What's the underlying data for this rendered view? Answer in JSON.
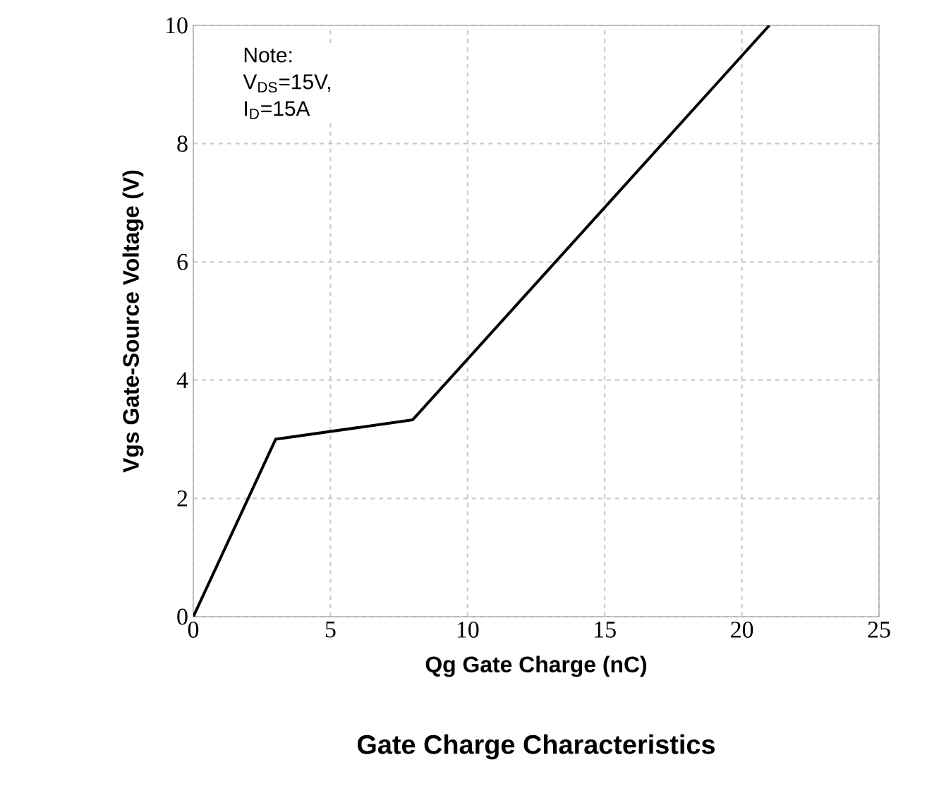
{
  "chart_data": {
    "type": "line",
    "title": "Gate Charge Characteristics",
    "xlabel": "Qg Gate Charge (nC)",
    "ylabel": "Vgs Gate-Source Voltage (V)",
    "annotations": [
      "Note:",
      "V$_{DS}$=15V,",
      "I$_{D}$=15A"
    ],
    "x": [
      0,
      3,
      8,
      21
    ],
    "values": [
      0,
      3,
      3.33,
      10
    ],
    "color": "#000000",
    "xlim": [
      0,
      25
    ],
    "ylim": [
      0,
      10
    ],
    "xticks": [
      0,
      5,
      10,
      15,
      20,
      25
    ],
    "yticks": [
      0,
      2,
      4,
      6,
      8,
      10
    ],
    "grid": true
  }
}
